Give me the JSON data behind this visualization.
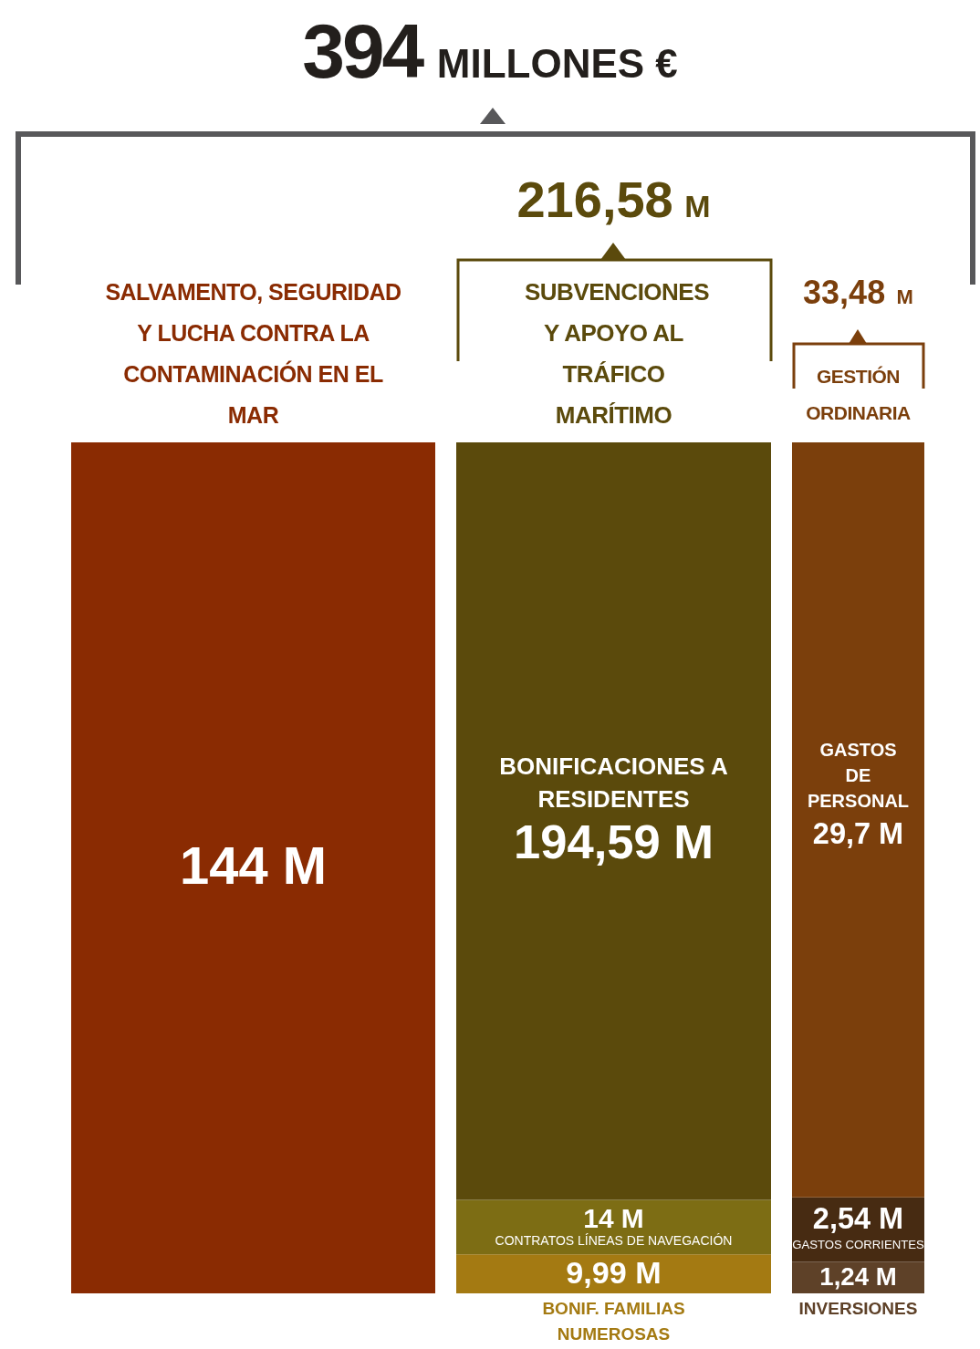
{
  "chart_data": {
    "type": "other",
    "title": "394 MILLONES €",
    "categories": [
      "SALVAMENTO, SEGURIDAD Y LUCHA CONTRA LA CONTAMINACIÓN EN EL MAR",
      "SUBVENCIONES Y APOYO AL TRÁFICO MARÍTIMO",
      "GESTIÓN ORDINARIA"
    ],
    "totals": [
      null,
      "216,58 M",
      "33,48 M"
    ],
    "series": [
      {
        "color": "#8a2b02",
        "values": [
          144,
          null,
          null
        ],
        "value_labels": [
          "144 M",
          null,
          null
        ]
      },
      {
        "name": "BONIF. FAMILIAS NUMEROSAS",
        "color": "#a47a12",
        "values": [
          null,
          9.99,
          null
        ],
        "value_labels": [
          null,
          "9,99 M",
          null
        ]
      },
      {
        "name": "CONTRATOS LÍNEAS DE NAVEGACIÓN",
        "color": "#7d6d14",
        "values": [
          null,
          14,
          null
        ],
        "value_labels": [
          null,
          "14 M",
          null
        ]
      },
      {
        "name": "BONIFICACIONES A RESIDENTES",
        "color": "#5b4a0c",
        "values": [
          null,
          194.59,
          null
        ],
        "value_labels": [
          null,
          "194,59 M",
          null
        ]
      },
      {
        "name": "INVERSIONES",
        "color": "#5e4128",
        "values": [
          null,
          null,
          1.24
        ],
        "value_labels": [
          null,
          null,
          "1,24 M"
        ]
      },
      {
        "name": "GASTOS CORRIENTES",
        "color": "#472b12",
        "values": [
          null,
          null,
          2.54
        ],
        "value_labels": [
          null,
          null,
          "2,54 M"
        ]
      },
      {
        "name": "GASTOS DE PERSONAL",
        "color": "#7b3f0c",
        "values": [
          null,
          null,
          29.7
        ],
        "value_labels": [
          null,
          null,
          "29,7 M"
        ]
      }
    ]
  }
}
